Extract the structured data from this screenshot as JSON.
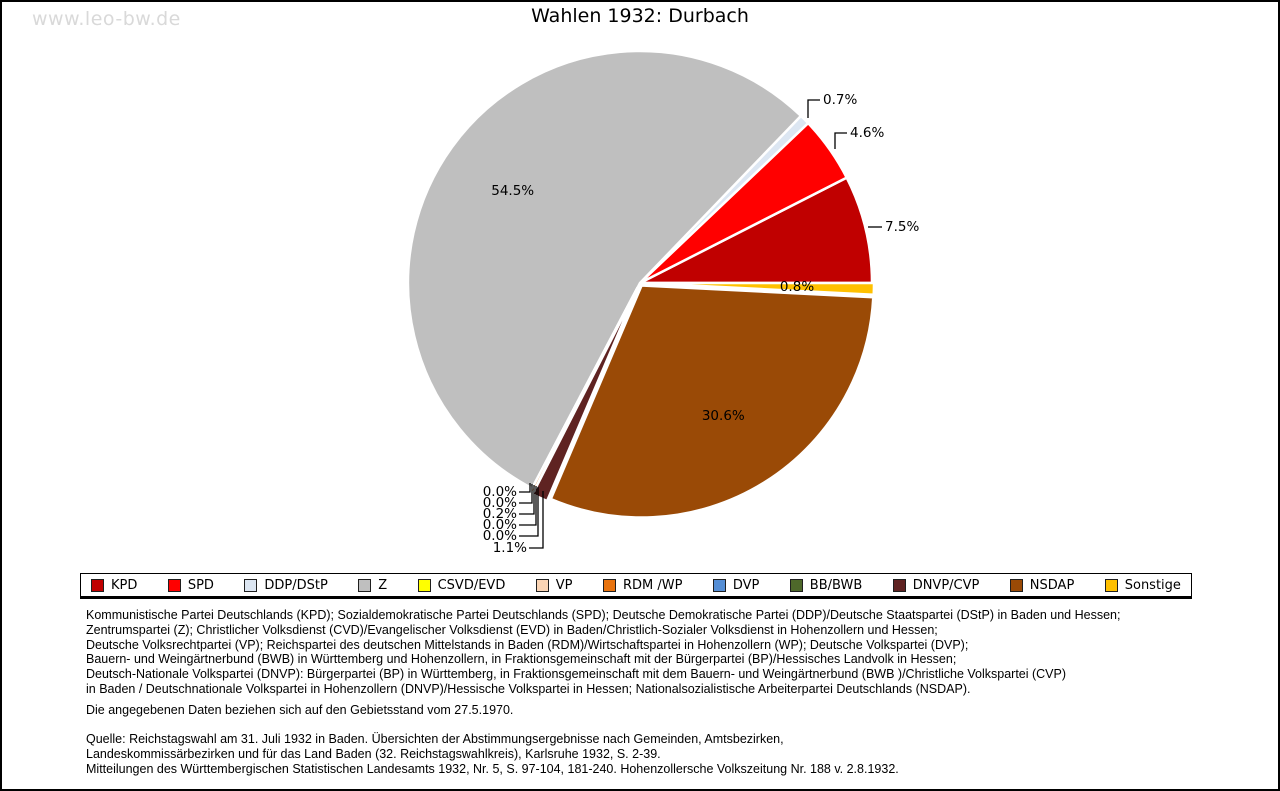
{
  "watermark": "www.leo-bw.de",
  "chart_data": {
    "type": "pie",
    "title": "Wahlen 1932: Durbach",
    "value_unit": "%",
    "start_angle_deg": 0,
    "direction": "counterclockwise",
    "legend_position": "bottom",
    "grid": false,
    "series": [
      {
        "name": "KPD",
        "value": 7.5,
        "color": "#C00000"
      },
      {
        "name": "SPD",
        "value": 4.6,
        "color": "#FF0000"
      },
      {
        "name": "DDP/DStP",
        "value": 0.7,
        "color": "#DCE6F2"
      },
      {
        "name": "Z",
        "value": 54.5,
        "color": "#BFBFBF"
      },
      {
        "name": "CSVD/EVD",
        "value": 0.0,
        "color": "#FFFF00"
      },
      {
        "name": "VP",
        "value": 0.0,
        "color": "#FBD5B5"
      },
      {
        "name": "RDM /WP",
        "value": 0.2,
        "color": "#E8730E"
      },
      {
        "name": "DVP",
        "value": 0.0,
        "color": "#558ED5"
      },
      {
        "name": "BB/BWB",
        "value": 0.0,
        "color": "#4E682A"
      },
      {
        "name": "DNVP/CVP",
        "value": 1.1,
        "color": "#5F2322"
      },
      {
        "name": "NSDAP",
        "value": 30.6,
        "color": "#9A4A06"
      },
      {
        "name": "Sonstige",
        "value": 0.8,
        "color": "#FFC000"
      }
    ]
  },
  "footnotes": {
    "parties": "Kommunistische Partei Deutschlands (KPD); Sozialdemokratische Partei Deutschlands (SPD); Deutsche Demokratische Partei (DDP)/Deutsche Staatspartei (DStP) in Baden und Hessen;\nZentrumspartei (Z); Christlicher Volksdienst (CVD)/Evangelischer Volksdienst (EVD) in Baden/Christlich-Sozialer Volksdienst in Hohenzollern und Hessen;\nDeutsche Volksrechtpartei (VP); Reichspartei des deutschen Mittelstands in Baden (RDM)/Wirtschaftspartei in Hohenzollern (WP); Deutsche Volkspartei (DVP);\nBauern- und Weingärtnerbund (BWB) in Württemberg und Hohenzollern, in Fraktionsgemeinschaft mit der Bürgerpartei (BP)/Hessisches Landvolk in Hessen;\nDeutsch-Nationale Volkspartei (DNVP): Bürgerpartei (BP) in Württemberg, in Fraktionsgemeinschaft mit dem Bauern- und Weingärtnerbund (BWB )/Christliche Volkspartei (CVP)\nin Baden / Deutschnationale Volkspartei in Hohenzollern (DNVP)/Hessische Volkspartei in Hessen; Nationalsozialistische Arbeiterpartei Deutschlands (NSDAP).",
    "note": "Die angegebenen Daten beziehen sich auf den Gebietsstand vom 27.5.1970.",
    "source": "Quelle: Reichstagswahl am 31. Juli 1932 in Baden. Übersichten der Abstimmungsergebnisse nach Gemeinden, Amtsbezirken,\nLandeskommissärbezirken und für das Land Baden (32. Reichstagswahlkreis), Karlsruhe 1932, S. 2-39.\nMitteilungen des Württembergischen Statistischen Landesamts 1932, Nr. 5, S. 97-104, 181-240. Hohenzollersche Volkszeitung Nr. 188 v. 2.8.1932."
  }
}
